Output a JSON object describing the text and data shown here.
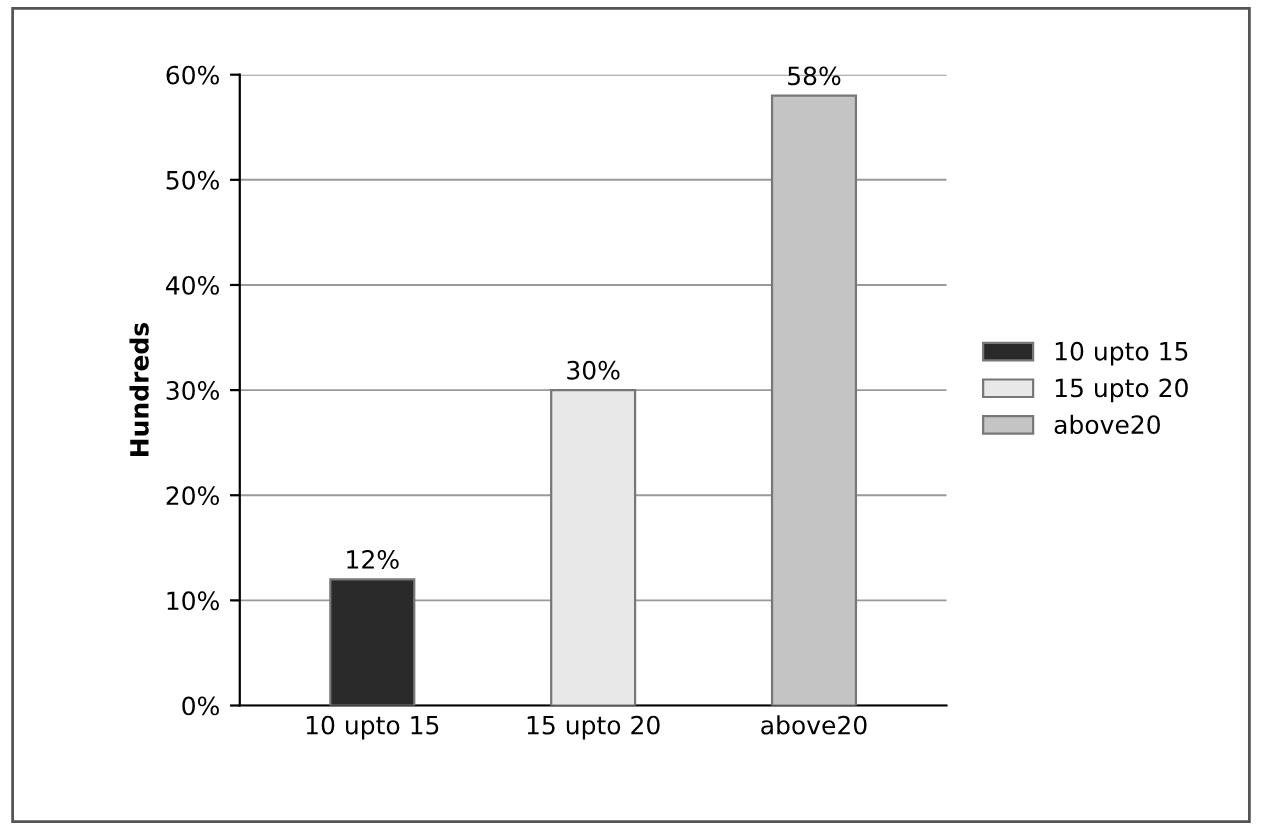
{
  "chart_data": {
    "type": "bar",
    "ylabel": "Hundreds",
    "categories": [
      "10 upto 15",
      "15 upto 20",
      "above20"
    ],
    "series": [
      {
        "name": "10 upto 15",
        "color": "#2a2a2a",
        "values": [
          12,
          null,
          null
        ],
        "value_labels": [
          "12%",
          null,
          null
        ]
      },
      {
        "name": "15 upto 20",
        "color": "#e8e8e8",
        "values": [
          null,
          30,
          null
        ],
        "value_labels": [
          null,
          "30%",
          null
        ]
      },
      {
        "name": "above20",
        "color": "#c4c4c4",
        "values": [
          null,
          null,
          58
        ],
        "value_labels": [
          null,
          null,
          "58%"
        ]
      }
    ],
    "ylim": [
      0,
      60
    ],
    "yticks": [
      {
        "value": 0,
        "label": "0%"
      },
      {
        "value": 10,
        "label": "10%"
      },
      {
        "value": 20,
        "label": "20%"
      },
      {
        "value": 30,
        "label": "30%"
      },
      {
        "value": 40,
        "label": "40%"
      },
      {
        "value": 50,
        "label": "50%"
      },
      {
        "value": 60,
        "label": "60%"
      }
    ],
    "grid": "y",
    "legend": "right"
  }
}
